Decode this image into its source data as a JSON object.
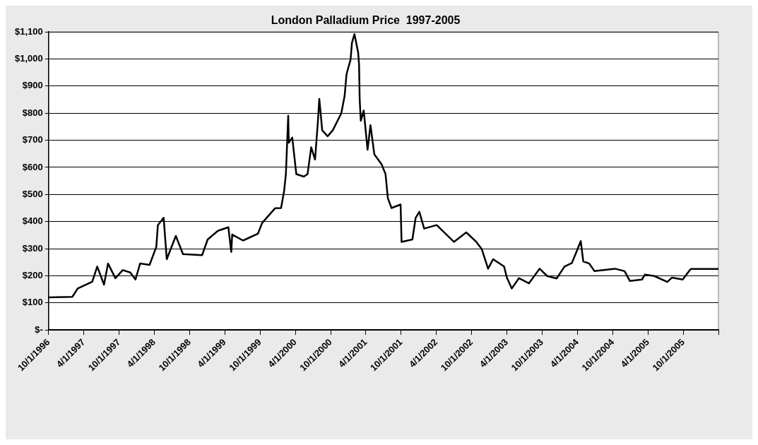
{
  "chart_data": {
    "type": "line",
    "title": "London Palladium Price  1997-2005",
    "legend": false,
    "grid": "y",
    "marker": "none",
    "line_style": "solid",
    "x": [
      "1996-10-01",
      "1997-02-01",
      "1997-03-01",
      "1997-05-15",
      "1997-06-10",
      "1997-07-15",
      "1997-08-05",
      "1997-09-12",
      "1997-10-20",
      "1997-11-28",
      "1997-12-25",
      "1998-01-18",
      "1998-03-08",
      "1998-04-12",
      "1998-04-20",
      "1998-05-20",
      "1998-06-05",
      "1998-07-22",
      "1998-08-28",
      "1998-12-05",
      "1999-01-03",
      "1999-02-25",
      "1999-04-20",
      "1999-05-05",
      "1999-05-10",
      "1999-07-05",
      "1999-09-20",
      "1999-10-12",
      "1999-12-18",
      "2000-01-18",
      "2000-02-03",
      "2000-02-12",
      "2000-02-24",
      "2000-02-27",
      "2000-03-16",
      "2000-04-06",
      "2000-05-15",
      "2000-06-03",
      "2000-06-22",
      "2000-07-12",
      "2000-07-27",
      "2000-08-03",
      "2000-08-18",
      "2000-09-15",
      "2000-10-12",
      "2000-11-25",
      "2000-12-12",
      "2000-12-22",
      "2001-01-12",
      "2001-01-19",
      "2001-02-01",
      "2001-02-20",
      "2001-02-25",
      "2001-02-28",
      "2001-03-06",
      "2001-03-21",
      "2001-04-10",
      "2001-04-25",
      "2001-05-15",
      "2001-06-22",
      "2001-07-12",
      "2001-07-24",
      "2001-08-12",
      "2001-09-28",
      "2001-10-03",
      "2001-11-28",
      "2001-12-15",
      "2002-01-03",
      "2002-01-28",
      "2002-04-03",
      "2002-07-01",
      "2002-09-03",
      "2002-10-25",
      "2002-11-22",
      "2002-12-25",
      "2003-01-20",
      "2003-03-18",
      "2003-04-01",
      "2003-04-27",
      "2003-06-03",
      "2003-07-25",
      "2003-09-18",
      "2003-10-27",
      "2003-12-15",
      "2004-01-25",
      "2004-03-03",
      "2004-03-22",
      "2004-04-18",
      "2004-05-01",
      "2004-06-01",
      "2004-06-28",
      "2004-10-12",
      "2004-12-01",
      "2004-12-28",
      "2005-03-01",
      "2005-03-16",
      "2005-05-04",
      "2005-07-10",
      "2005-08-03",
      "2005-09-28",
      "2005-11-04",
      "2005-11-10",
      "2006-04-01"
    ],
    "series": [
      {
        "color": "#000000",
        "values": [
          120,
          122,
          153,
          178,
          234,
          167,
          245,
          191,
          221,
          212,
          186,
          245,
          240,
          307,
          387,
          414,
          261,
          347,
          280,
          276,
          334,
          366,
          379,
          288,
          352,
          330,
          355,
          395,
          449,
          450,
          514,
          575,
          791,
          691,
          710,
          575,
          566,
          575,
          674,
          629,
          772,
          853,
          737,
          715,
          737,
          800,
          863,
          944,
          998,
          1060,
          1092,
          1025,
          979,
          853,
          772,
          810,
          665,
          756,
          648,
          611,
          575,
          486,
          450,
          463,
          325,
          334,
          414,
          436,
          374,
          387,
          325,
          360,
          325,
          299,
          226,
          261,
          234,
          194,
          153,
          191,
          172,
          226,
          199,
          190,
          234,
          247,
          280,
          328,
          253,
          245,
          217,
          226,
          217,
          181,
          186,
          204,
          199,
          177,
          193,
          186,
          221,
          225,
          225
        ]
      }
    ],
    "xlim": [
      "1996-10-01",
      "2006-04-01"
    ],
    "xticks": [
      {
        "value": "1996-10-01",
        "label": "10/1/1996"
      },
      {
        "value": "1997-04-01",
        "label": "4/1/1997"
      },
      {
        "value": "1997-10-01",
        "label": "10/1/1997"
      },
      {
        "value": "1998-04-01",
        "label": "4/1/1998"
      },
      {
        "value": "1998-10-01",
        "label": "10/1/1998"
      },
      {
        "value": "1999-04-01",
        "label": "4/1/1999"
      },
      {
        "value": "1999-10-01",
        "label": "10/1/1999"
      },
      {
        "value": "2000-04-01",
        "label": "4/1/2000"
      },
      {
        "value": "2000-10-01",
        "label": "10/1/2000"
      },
      {
        "value": "2001-04-01",
        "label": "4/1/2001"
      },
      {
        "value": "2001-10-01",
        "label": "10/1/2001"
      },
      {
        "value": "2002-04-01",
        "label": "4/1/2002"
      },
      {
        "value": "2002-10-01",
        "label": "10/1/2002"
      },
      {
        "value": "2003-04-01",
        "label": "4/1/2003"
      },
      {
        "value": "2003-10-01",
        "label": "10/1/2003"
      },
      {
        "value": "2004-04-01",
        "label": "4/1/2004"
      },
      {
        "value": "2004-10-01",
        "label": "10/1/2004"
      },
      {
        "value": "2005-04-01",
        "label": "4/1/2005"
      },
      {
        "value": "2005-10-01",
        "label": "10/1/2005"
      },
      {
        "value": "2006-04-01",
        "label": null
      }
    ],
    "ylim": [
      0,
      1100
    ],
    "yticks": [
      {
        "value": 0,
        "label": "$-"
      },
      {
        "value": 100,
        "label": "$100"
      },
      {
        "value": 200,
        "label": "$200"
      },
      {
        "value": 300,
        "label": "$300"
      },
      {
        "value": 400,
        "label": "$400"
      },
      {
        "value": 500,
        "label": "$500"
      },
      {
        "value": 600,
        "label": "$600"
      },
      {
        "value": 700,
        "label": "$700"
      },
      {
        "value": 800,
        "label": "$800"
      },
      {
        "value": 900,
        "label": "$900"
      },
      {
        "value": 1000,
        "label": "$1,000"
      },
      {
        "value": 1100,
        "label": "$1,100"
      }
    ]
  }
}
